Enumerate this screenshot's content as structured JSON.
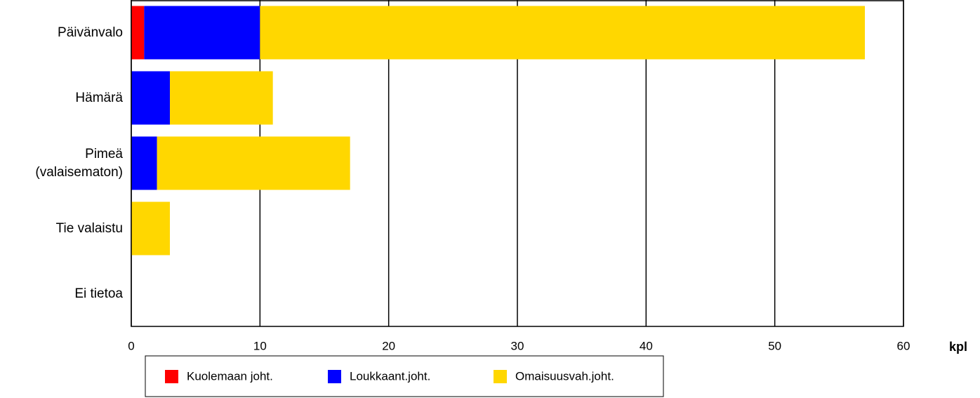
{
  "chart_data": {
    "type": "bar",
    "orientation": "horizontal",
    "stacked": true,
    "categories": [
      "Päivänvalo",
      "Hämärä",
      "Pimeä\n(valaisematon)",
      "Tie valaistu",
      "Ei tietoa"
    ],
    "series": [
      {
        "name": "Kuolemaan joht.",
        "color": "#ff0000",
        "values": [
          1,
          0,
          0,
          0,
          0
        ]
      },
      {
        "name": "Loukkaant.joht.",
        "color": "#0000ff",
        "values": [
          9,
          3,
          2,
          0,
          0
        ]
      },
      {
        "name": "Omaisuusvah.joht.",
        "color": "#ffd700",
        "values": [
          47,
          8,
          15,
          3,
          0
        ]
      }
    ],
    "x_label": "kpl",
    "xlim": [
      0,
      60
    ],
    "xticks": [
      0,
      10,
      20,
      30,
      40,
      50,
      60
    ],
    "grid": true,
    "legend": "bottom"
  }
}
